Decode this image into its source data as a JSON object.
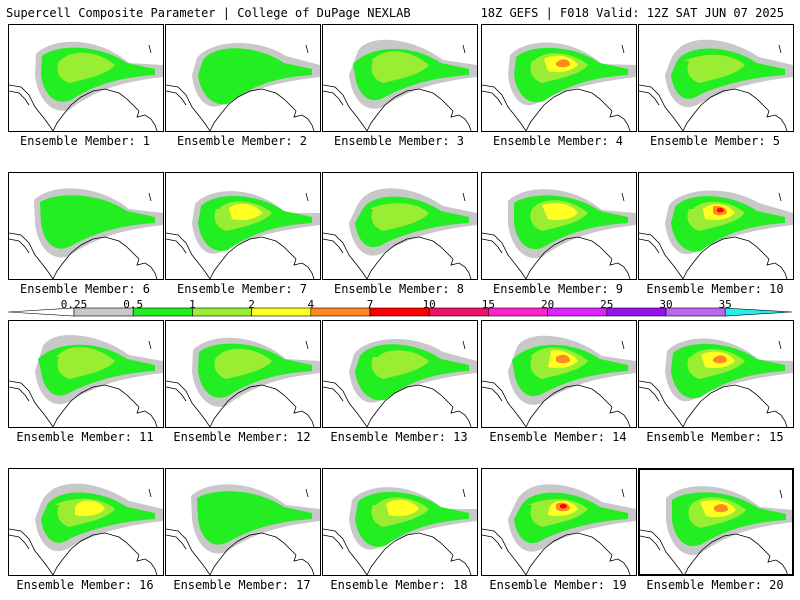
{
  "header": {
    "left": "Supercell Composite Parameter | College of DuPage NEXLAB",
    "right": "18Z GEFS | F018 Valid: 12Z SAT JUN 07 2025"
  },
  "members": [
    {
      "label": "Ensemble Member: 1",
      "max": 2
    },
    {
      "label": "Ensemble Member: 2",
      "max": 1
    },
    {
      "label": "Ensemble Member: 3",
      "max": 2
    },
    {
      "label": "Ensemble Member: 4",
      "max": 7
    },
    {
      "label": "Ensemble Member: 5",
      "max": 2
    },
    {
      "label": "Ensemble Member: 6",
      "max": 1
    },
    {
      "label": "Ensemble Member: 7",
      "max": 4
    },
    {
      "label": "Ensemble Member: 8",
      "max": 2
    },
    {
      "label": "Ensemble Member: 9",
      "max": 4
    },
    {
      "label": "Ensemble Member: 10",
      "max": 10
    },
    {
      "label": "Ensemble Member: 11",
      "max": 2
    },
    {
      "label": "Ensemble Member: 12",
      "max": 2
    },
    {
      "label": "Ensemble Member: 13",
      "max": 2
    },
    {
      "label": "Ensemble Member: 14",
      "max": 7
    },
    {
      "label": "Ensemble Member: 15",
      "max": 7
    },
    {
      "label": "Ensemble Member: 16",
      "max": 4
    },
    {
      "label": "Ensemble Member: 17",
      "max": 1
    },
    {
      "label": "Ensemble Member: 18",
      "max": 4
    },
    {
      "label": "Ensemble Member: 19",
      "max": 10
    },
    {
      "label": "Ensemble Member: 20",
      "max": 7,
      "highlighted": true
    }
  ],
  "colorbar": {
    "ticks": [
      "0.25",
      "0.5",
      "1",
      "2",
      "4",
      "7",
      "10",
      "15",
      "20",
      "25",
      "30",
      "35"
    ],
    "colors": [
      "#ffffff",
      "#c8c8c8",
      "#22ee22",
      "#99ee33",
      "#ffff22",
      "#ff8822",
      "#ff0000",
      "#ee1166",
      "#ff22cc",
      "#dd22ff",
      "#9911ee",
      "#bb66ee",
      "#22eeee"
    ]
  },
  "fill_levels": {
    "gray": "#c8c8c8",
    "green": "#22ee22",
    "lime": "#99ee33",
    "yellow": "#ffff22",
    "orange": "#ff8822",
    "red": "#ff0000"
  }
}
